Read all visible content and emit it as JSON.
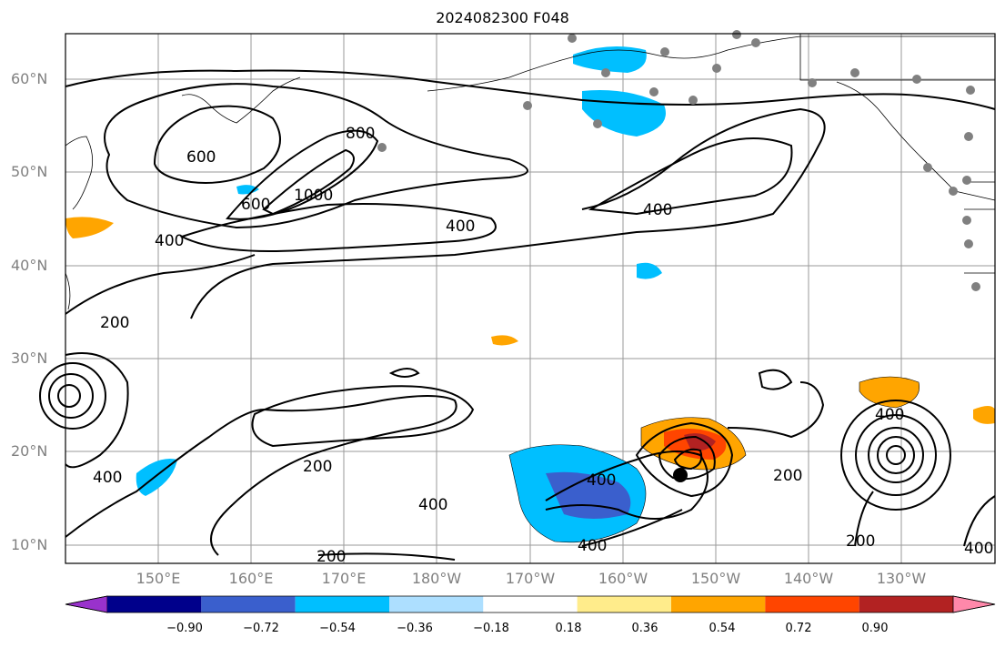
{
  "title": "2024082300 F048",
  "map": {
    "lat_labels": [
      "60°N",
      "50°N",
      "40°N",
      "30°N",
      "20°N",
      "10°N"
    ],
    "lon_labels": [
      "150°E",
      "160°E",
      "170°E",
      "180°W",
      "170°W",
      "160°W",
      "150°W",
      "140°W",
      "130°W"
    ],
    "contour_labels": [
      "200",
      "400",
      "600",
      "800",
      "1000"
    ],
    "center_marker": "black-dot"
  },
  "colorbar": {
    "ticks": [
      "−0.90",
      "−0.72",
      "−0.54",
      "−0.36",
      "−0.18",
      "0.18",
      "0.36",
      "0.54",
      "0.72",
      "0.90"
    ],
    "colors": [
      "#9932CC",
      "#00008B",
      "#3A5FCD",
      "#00BFFF",
      "#ADDFFF",
      "#FFFFFF",
      "#FFEC8B",
      "#FFA500",
      "#FF4500",
      "#B22222",
      "#FF88AA"
    ]
  }
}
